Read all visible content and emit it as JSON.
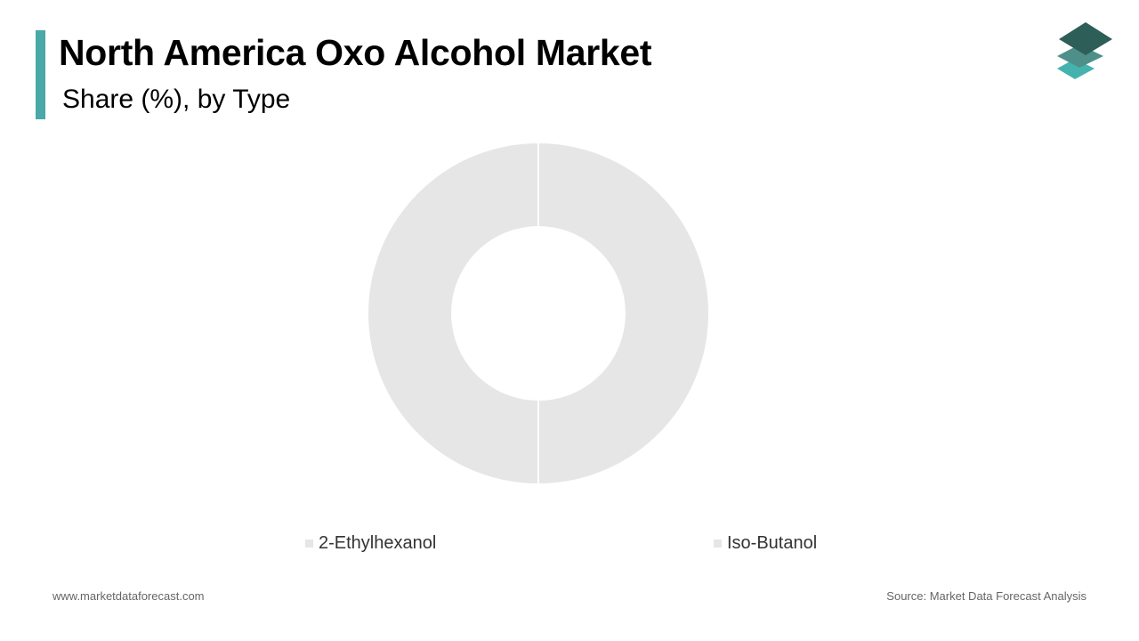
{
  "header": {
    "title": "North America Oxo Alcohol Market",
    "subtitle": "Share (%), by Type",
    "accent_color": "#4aa8a8"
  },
  "logo": {
    "icon": "stacked-layers-logo-icon",
    "colors": [
      "#2e5e58",
      "#4f8f89",
      "#45b3ad"
    ]
  },
  "chart_data": {
    "type": "pie",
    "donut": true,
    "title": "North America Oxo Alcohol Market",
    "subtitle": "Share (%), by Type",
    "categories": [
      "2-Ethylhexanol",
      "Iso-Butanol"
    ],
    "values": [
      50,
      50
    ],
    "colors": [
      "#e6e6e6",
      "#e6e6e6"
    ],
    "legend_position": "bottom"
  },
  "footer": {
    "website": "www.marketdataforecast.com",
    "source": "Source: Market Data Forecast Analysis"
  }
}
